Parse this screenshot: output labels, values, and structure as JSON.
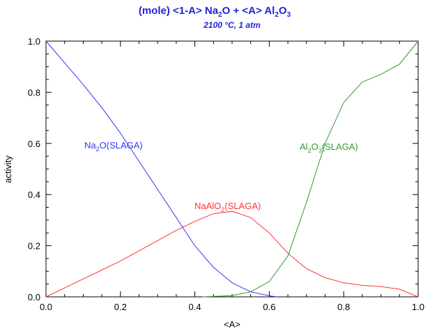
{
  "chart_data": {
    "type": "line",
    "title_parts": {
      "prefix": "(mole) <1-A> Na",
      "sub1": "2",
      "mid": "O  +  <A> Al",
      "sub2": "2",
      "mid2": "O",
      "sub3": "3"
    },
    "subtitle": "2100 °C, 1 atm",
    "xlabel": "<A>",
    "ylabel": "activity",
    "xlim": [
      0,
      1
    ],
    "ylim": [
      0,
      1
    ],
    "xticks": [
      "0.0",
      "0.2",
      "0.4",
      "0.6",
      "0.8",
      "1.0"
    ],
    "yticks": [
      "0.0",
      "0.2",
      "0.4",
      "0.6",
      "0.8",
      "1.0"
    ],
    "series": [
      {
        "name": "Na2O(SLAGA)",
        "label_main": "Na",
        "label_sub": "2",
        "label_rest": "O(SLAGA)",
        "color": "#3333ff",
        "x": [
          0,
          0.05,
          0.1,
          0.15,
          0.2,
          0.25,
          0.3,
          0.35,
          0.4,
          0.45,
          0.5,
          0.55,
          0.6,
          0.62
        ],
        "y": [
          1.0,
          0.915,
          0.83,
          0.74,
          0.64,
          0.53,
          0.42,
          0.31,
          0.2,
          0.115,
          0.055,
          0.02,
          0.004,
          0.0
        ]
      },
      {
        "name": "NaAlO2(SLAGA)",
        "label_main": "NaAlO",
        "label_sub": "2",
        "label_rest": "(SLAGA)",
        "color": "#ff3333",
        "x": [
          0,
          0.05,
          0.1,
          0.15,
          0.2,
          0.25,
          0.3,
          0.35,
          0.4,
          0.45,
          0.5,
          0.55,
          0.6,
          0.65,
          0.7,
          0.75,
          0.8,
          0.85,
          0.9,
          0.95,
          1.0
        ],
        "y": [
          0.0,
          0.035,
          0.07,
          0.105,
          0.14,
          0.18,
          0.22,
          0.26,
          0.295,
          0.325,
          0.335,
          0.31,
          0.25,
          0.17,
          0.11,
          0.075,
          0.055,
          0.045,
          0.04,
          0.03,
          0.0
        ]
      },
      {
        "name": "Al2O3(SLAGA)",
        "label_main": "Al",
        "label_sub": "2",
        "label_mid": "O",
        "label_sub2": "3",
        "label_rest": "(SLAGA)",
        "color": "#339933",
        "x": [
          0.42,
          0.5,
          0.55,
          0.6,
          0.65,
          0.7,
          0.75,
          0.8,
          0.85,
          0.9,
          0.95,
          1.0
        ],
        "y": [
          0.0,
          0.005,
          0.02,
          0.06,
          0.16,
          0.37,
          0.6,
          0.76,
          0.84,
          0.87,
          0.91,
          1.0
        ]
      }
    ]
  }
}
